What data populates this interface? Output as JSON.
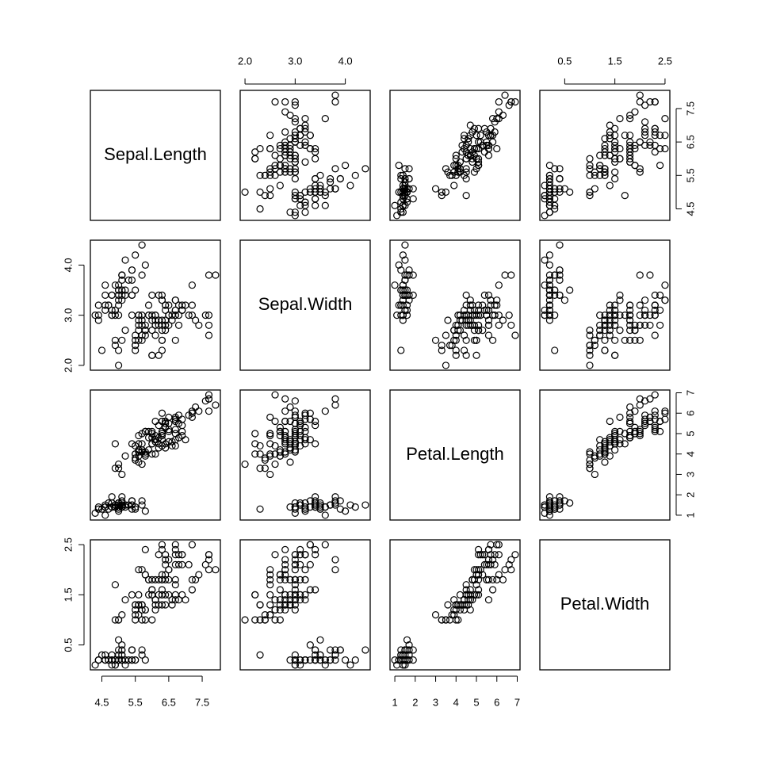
{
  "chart_data": {
    "type": "pairs",
    "variables": [
      {
        "name": "Sepal.Length",
        "lim": [
          4.156,
          8.044
        ],
        "ticks": [
          4.5,
          5.5,
          6.5,
          7.5
        ],
        "values": [
          5.1,
          4.9,
          4.7,
          4.6,
          5.0,
          5.4,
          4.6,
          5.0,
          4.4,
          4.9,
          5.4,
          4.8,
          4.8,
          4.3,
          5.8,
          5.7,
          5.4,
          5.1,
          5.7,
          5.1,
          5.4,
          5.1,
          4.6,
          5.1,
          4.8,
          5.0,
          5.0,
          5.2,
          5.2,
          4.7,
          4.8,
          5.4,
          5.2,
          5.5,
          4.9,
          5.0,
          5.5,
          4.9,
          4.4,
          5.1,
          5.0,
          4.5,
          4.4,
          5.0,
          5.1,
          4.8,
          5.1,
          4.6,
          5.3,
          5.0,
          7.0,
          6.4,
          6.9,
          5.5,
          6.5,
          5.7,
          6.3,
          4.9,
          6.6,
          5.2,
          5.0,
          5.9,
          6.0,
          6.1,
          5.6,
          6.7,
          5.6,
          5.8,
          6.2,
          5.6,
          5.9,
          6.1,
          6.3,
          6.1,
          6.4,
          6.6,
          6.8,
          6.7,
          6.0,
          5.7,
          5.5,
          5.5,
          5.8,
          6.0,
          5.4,
          6.0,
          6.7,
          6.3,
          5.6,
          5.5,
          5.5,
          6.1,
          5.8,
          5.0,
          5.6,
          5.7,
          5.7,
          6.2,
          5.1,
          5.7,
          6.3,
          5.8,
          7.1,
          6.3,
          6.5,
          7.6,
          4.9,
          7.3,
          6.7,
          7.2,
          6.5,
          6.4,
          6.8,
          5.7,
          5.8,
          6.4,
          6.5,
          7.7,
          7.7,
          6.0,
          6.9,
          5.6,
          7.7,
          6.3,
          6.7,
          7.2,
          6.2,
          6.1,
          6.4,
          7.2,
          7.4,
          7.9,
          6.4,
          6.3,
          6.1,
          7.7,
          6.3,
          6.4,
          6.0,
          6.9,
          6.7,
          6.9,
          5.8,
          6.8,
          6.7,
          6.7,
          6.3,
          6.5,
          6.2,
          5.9
        ]
      },
      {
        "name": "Sepal.Width",
        "lim": [
          1.904,
          4.496
        ],
        "ticks": [
          {
            "value": 2,
            "label": "2.0"
          },
          {
            "value": 3,
            "label": "3.0"
          },
          {
            "value": 4,
            "label": "4.0"
          }
        ],
        "values": [
          3.5,
          3.0,
          3.2,
          3.1,
          3.6,
          3.9,
          3.4,
          3.4,
          2.9,
          3.1,
          3.7,
          3.4,
          3.0,
          3.0,
          4.0,
          4.4,
          3.9,
          3.5,
          3.8,
          3.8,
          3.4,
          3.7,
          3.6,
          3.3,
          3.4,
          3.0,
          3.4,
          3.5,
          3.4,
          3.2,
          3.1,
          3.4,
          4.1,
          4.2,
          3.1,
          3.2,
          3.5,
          3.6,
          3.0,
          3.4,
          3.5,
          2.3,
          3.2,
          3.5,
          3.8,
          3.0,
          3.8,
          3.2,
          3.7,
          3.3,
          3.2,
          3.2,
          3.1,
          2.3,
          2.8,
          2.8,
          3.3,
          2.4,
          2.9,
          2.7,
          2.0,
          3.0,
          2.2,
          2.9,
          2.9,
          3.1,
          3.0,
          2.7,
          2.2,
          2.5,
          3.2,
          2.8,
          2.5,
          2.8,
          2.9,
          3.0,
          2.8,
          3.0,
          2.9,
          2.6,
          2.4,
          2.4,
          2.7,
          2.7,
          3.0,
          3.4,
          3.1,
          2.3,
          3.0,
          2.5,
          2.6,
          3.0,
          2.6,
          2.3,
          2.7,
          3.0,
          2.9,
          2.9,
          2.5,
          2.8,
          3.3,
          2.7,
          3.0,
          2.9,
          3.0,
          3.0,
          2.5,
          2.9,
          2.5,
          3.6,
          3.2,
          2.7,
          3.0,
          2.5,
          2.8,
          3.2,
          3.0,
          3.8,
          2.6,
          2.2,
          3.2,
          2.8,
          2.8,
          2.7,
          3.3,
          3.2,
          2.8,
          3.0,
          2.8,
          3.0,
          2.8,
          3.8,
          2.8,
          2.8,
          2.6,
          3.0,
          3.4,
          3.1,
          3.0,
          3.1,
          3.1,
          3.1,
          2.7,
          3.2,
          3.3,
          3.0,
          2.5,
          3.0,
          3.4,
          3.0
        ]
      },
      {
        "name": "Petal.Length",
        "lim": [
          0.764,
          7.136
        ],
        "ticks": [
          1,
          2,
          3,
          4,
          5,
          6,
          7
        ],
        "values": [
          1.4,
          1.4,
          1.3,
          1.5,
          1.4,
          1.7,
          1.4,
          1.5,
          1.4,
          1.5,
          1.5,
          1.6,
          1.4,
          1.1,
          1.2,
          1.5,
          1.3,
          1.4,
          1.7,
          1.5,
          1.7,
          1.5,
          1.0,
          1.7,
          1.9,
          1.6,
          1.6,
          1.5,
          1.4,
          1.6,
          1.6,
          1.5,
          1.5,
          1.4,
          1.5,
          1.2,
          1.3,
          1.4,
          1.3,
          1.5,
          1.3,
          1.3,
          1.3,
          1.6,
          1.9,
          1.4,
          1.6,
          1.4,
          1.5,
          1.4,
          4.7,
          4.5,
          4.9,
          4.0,
          4.6,
          4.5,
          4.7,
          3.3,
          4.6,
          3.9,
          3.5,
          4.2,
          4.0,
          4.7,
          3.6,
          4.4,
          4.5,
          4.1,
          4.5,
          3.9,
          4.8,
          4.0,
          4.9,
          4.7,
          4.3,
          4.4,
          4.8,
          5.0,
          4.5,
          3.5,
          3.8,
          3.7,
          3.9,
          5.1,
          4.5,
          4.5,
          4.7,
          4.4,
          4.1,
          4.0,
          4.4,
          4.6,
          4.0,
          3.3,
          4.2,
          4.2,
          4.2,
          4.3,
          3.0,
          4.1,
          6.0,
          5.1,
          5.9,
          5.6,
          5.8,
          6.6,
          4.5,
          6.3,
          5.8,
          6.1,
          5.1,
          5.3,
          5.5,
          5.0,
          5.1,
          5.3,
          5.5,
          6.7,
          6.9,
          5.0,
          5.7,
          4.9,
          6.7,
          4.9,
          5.7,
          6.0,
          4.8,
          4.9,
          5.6,
          5.8,
          6.1,
          6.4,
          5.6,
          5.1,
          5.6,
          6.1,
          5.6,
          5.5,
          4.8,
          5.4,
          5.6,
          5.1,
          5.1,
          5.9,
          5.7,
          5.2,
          5.0,
          5.2,
          5.4,
          5.1
        ]
      },
      {
        "name": "Petal.Width",
        "lim": [
          0.004,
          2.596
        ],
        "ticks": [
          0.5,
          1.5,
          2.5
        ],
        "values": [
          0.2,
          0.2,
          0.2,
          0.2,
          0.2,
          0.4,
          0.3,
          0.2,
          0.2,
          0.1,
          0.2,
          0.2,
          0.1,
          0.1,
          0.2,
          0.4,
          0.4,
          0.3,
          0.3,
          0.3,
          0.2,
          0.4,
          0.2,
          0.5,
          0.2,
          0.2,
          0.4,
          0.2,
          0.2,
          0.2,
          0.2,
          0.4,
          0.1,
          0.2,
          0.2,
          0.2,
          0.2,
          0.1,
          0.2,
          0.2,
          0.3,
          0.3,
          0.2,
          0.6,
          0.4,
          0.3,
          0.2,
          0.2,
          0.2,
          0.2,
          1.4,
          1.5,
          1.5,
          1.3,
          1.5,
          1.3,
          1.6,
          1.0,
          1.3,
          1.4,
          1.0,
          1.5,
          1.0,
          1.4,
          1.3,
          1.4,
          1.5,
          1.0,
          1.5,
          1.1,
          1.8,
          1.3,
          1.5,
          1.2,
          1.3,
          1.4,
          1.4,
          1.7,
          1.5,
          1.0,
          1.1,
          1.0,
          1.2,
          1.6,
          1.5,
          1.6,
          1.5,
          1.3,
          1.3,
          1.3,
          1.2,
          1.4,
          1.2,
          1.0,
          1.3,
          1.2,
          1.3,
          1.3,
          1.1,
          1.3,
          2.5,
          1.9,
          2.1,
          1.8,
          2.2,
          2.1,
          1.7,
          1.8,
          1.8,
          2.5,
          2.0,
          1.9,
          2.1,
          2.0,
          2.4,
          2.3,
          1.8,
          2.2,
          2.3,
          1.5,
          2.3,
          2.0,
          2.0,
          1.8,
          2.1,
          1.8,
          1.8,
          1.8,
          2.1,
          1.6,
          1.9,
          2.0,
          2.2,
          1.5,
          1.4,
          2.3,
          2.4,
          1.8,
          1.8,
          2.1,
          2.4,
          2.3,
          1.9,
          2.3,
          2.5,
          2.3,
          1.9,
          2.0,
          2.3,
          1.8
        ]
      }
    ]
  }
}
